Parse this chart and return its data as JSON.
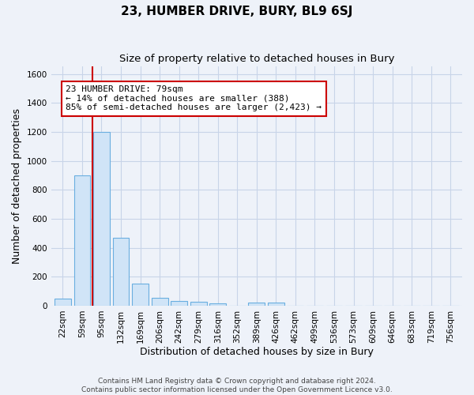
{
  "title": "23, HUMBER DRIVE, BURY, BL9 6SJ",
  "subtitle": "Size of property relative to detached houses in Bury",
  "xlabel": "Distribution of detached houses by size in Bury",
  "ylabel": "Number of detached properties",
  "bar_labels": [
    "22sqm",
    "59sqm",
    "95sqm",
    "132sqm",
    "169sqm",
    "206sqm",
    "242sqm",
    "279sqm",
    "316sqm",
    "352sqm",
    "389sqm",
    "426sqm",
    "462sqm",
    "499sqm",
    "536sqm",
    "573sqm",
    "609sqm",
    "646sqm",
    "683sqm",
    "719sqm",
    "756sqm"
  ],
  "bar_values": [
    50,
    900,
    1200,
    470,
    150,
    55,
    30,
    25,
    15,
    0,
    20,
    20,
    0,
    0,
    0,
    0,
    0,
    0,
    0,
    0,
    0
  ],
  "bar_color": "#d0e4f7",
  "bar_edge_color": "#6aaee0",
  "grid_color": "#c8d4e8",
  "background_color": "#eef2f9",
  "red_line_x": 1.55,
  "annotation_text": "23 HUMBER DRIVE: 79sqm\n← 14% of detached houses are smaller (388)\n85% of semi-detached houses are larger (2,423) →",
  "annotation_box_color": "#ffffff",
  "annotation_box_edge": "#cc0000",
  "ylim": [
    0,
    1650
  ],
  "yticks": [
    0,
    200,
    400,
    600,
    800,
    1000,
    1200,
    1400,
    1600
  ],
  "footer_line1": "Contains HM Land Registry data © Crown copyright and database right 2024.",
  "footer_line2": "Contains public sector information licensed under the Open Government Licence v3.0.",
  "title_fontsize": 11,
  "subtitle_fontsize": 9.5,
  "tick_fontsize": 7.5,
  "label_fontsize": 9,
  "ylabel_fontsize": 9,
  "footer_fontsize": 6.5
}
